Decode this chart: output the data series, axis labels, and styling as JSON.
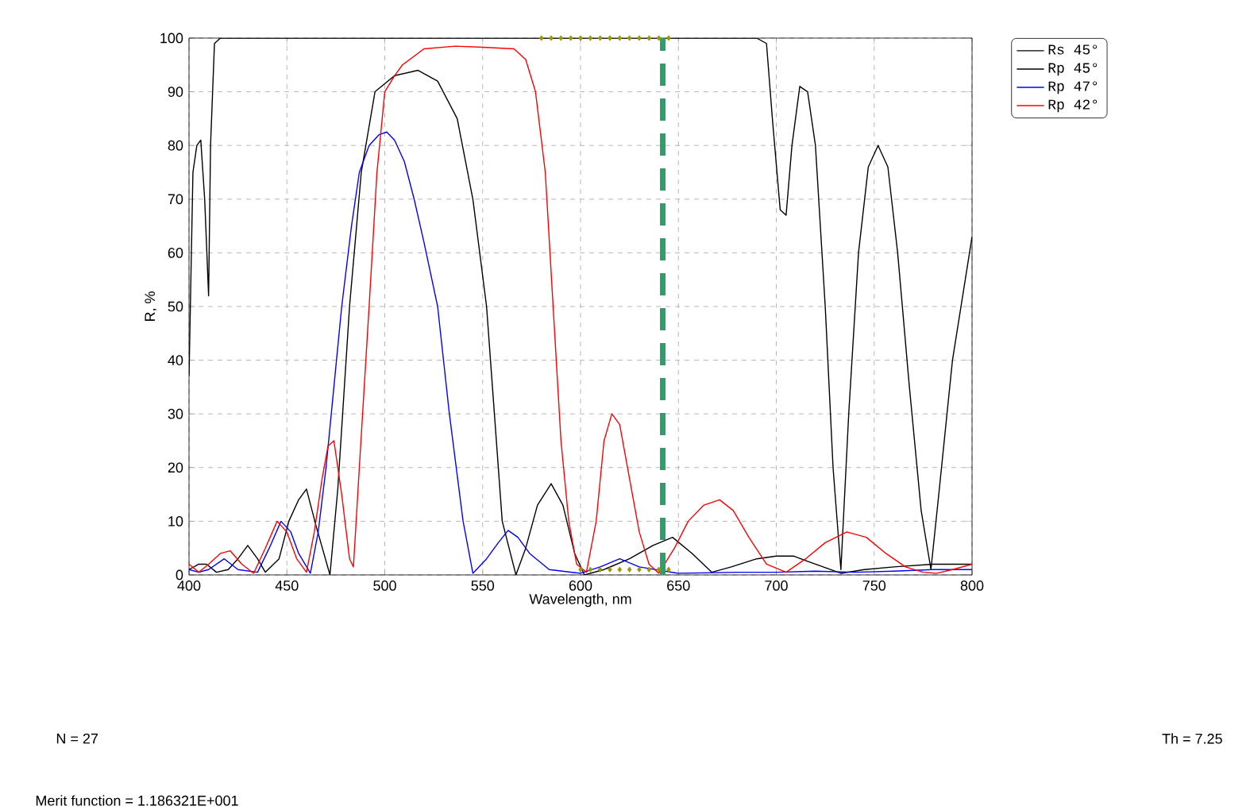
{
  "chart_data": {
    "type": "line",
    "xlabel": "Wavelength, nm",
    "ylabel": "R, %",
    "xlim": [
      400,
      800
    ],
    "ylim": [
      0,
      100
    ],
    "xticks": [
      400,
      450,
      500,
      550,
      600,
      650,
      700,
      750,
      800
    ],
    "yticks": [
      0,
      10,
      20,
      30,
      40,
      50,
      60,
      70,
      80,
      90,
      100
    ],
    "grid": true,
    "legend": "top right",
    "line_style": "solid",
    "marker": "none",
    "series": [
      {
        "name": "Rs 45°",
        "color": "#000000",
        "x": [
          400,
          402,
          404,
          406,
          408,
          410,
          411,
          413,
          416,
          690,
          695,
          698,
          702,
          705,
          708,
          712,
          716,
          720,
          725,
          729,
          733,
          737,
          742,
          747,
          752,
          757,
          762,
          768,
          774,
          779,
          783,
          790,
          800
        ],
        "values": [
          37,
          75,
          80,
          81,
          70,
          52,
          80,
          99,
          100,
          100,
          99,
          85,
          68,
          67,
          80,
          91,
          90,
          80,
          50,
          20,
          1,
          30,
          60,
          76,
          80,
          76,
          60,
          35,
          12,
          1,
          15,
          40,
          63
        ]
      },
      {
        "name": "Rp 45°",
        "color": "#000000",
        "x": [
          400,
          405,
          409,
          414,
          420,
          425,
          430,
          435,
          439,
          446,
          451,
          456,
          460,
          465,
          472,
          476,
          482,
          488,
          495,
          505,
          517,
          527,
          537,
          545,
          552,
          560,
          567,
          572,
          578,
          585,
          591,
          597,
          602,
          612,
          625,
          637,
          647,
          657,
          667,
          677,
          690,
          700,
          709,
          720,
          733,
          745,
          760,
          780,
          800
        ],
        "values": [
          1,
          2,
          2,
          0.5,
          1,
          3,
          5.5,
          3,
          0.5,
          3,
          10,
          14,
          16,
          9,
          0,
          16,
          50,
          75,
          90,
          93,
          94,
          92,
          85,
          70,
          50,
          10,
          0,
          5,
          13,
          17,
          13,
          4,
          0,
          1,
          3,
          5.5,
          7,
          4,
          0.5,
          1.5,
          3,
          3.5,
          3.5,
          2,
          0.3,
          1,
          1.5,
          2,
          2
        ]
      },
      {
        "name": "Rp 47°",
        "color": "#0000ff",
        "x": [
          400,
          405,
          410,
          418,
          425,
          435,
          441,
          447,
          452,
          456,
          462,
          466,
          470,
          474,
          478,
          483,
          487,
          492,
          497,
          501,
          505,
          510,
          515,
          520,
          527,
          533,
          540,
          545,
          552,
          558,
          563,
          568,
          574,
          584,
          600,
          610,
          620,
          630,
          650,
          680,
          700,
          720,
          740,
          760,
          780,
          800
        ],
        "values": [
          1,
          0.5,
          1,
          3,
          1,
          0.5,
          5,
          10,
          8,
          4,
          0.3,
          8,
          20,
          35,
          50,
          65,
          75,
          80,
          82,
          82.5,
          81,
          77,
          70,
          62,
          50,
          30,
          10,
          0.3,
          3,
          6,
          8.3,
          7,
          4,
          1,
          0.3,
          1.5,
          3,
          1.5,
          0.3,
          0.5,
          0.5,
          0.7,
          0.5,
          0.7,
          1,
          1
        ]
      },
      {
        "name": "Rp 42°",
        "color": "#ff0000",
        "x": [
          400,
          405,
          410,
          416,
          421,
          427,
          433,
          439,
          445,
          450,
          455,
          460,
          464,
          468,
          471,
          474,
          478,
          482,
          484,
          487,
          492,
          496,
          500,
          505,
          509,
          520,
          536,
          550,
          566,
          572,
          577,
          582,
          586,
          590,
          594,
          598,
          603,
          608,
          612,
          616,
          620,
          625,
          630,
          635,
          640,
          648,
          655,
          663,
          671,
          678,
          686,
          695,
          705,
          715,
          725,
          736,
          746,
          756,
          766,
          775,
          782,
          790,
          800
        ],
        "values": [
          2,
          0.5,
          2,
          4,
          4.5,
          2,
          0.3,
          5,
          10,
          8,
          3,
          0.5,
          8,
          18,
          24,
          25,
          15,
          3,
          1.5,
          20,
          50,
          75,
          90,
          93,
          95,
          98,
          98.5,
          98.3,
          98,
          96,
          90,
          75,
          50,
          25,
          10,
          2,
          0.5,
          10,
          25,
          30,
          28,
          18,
          8,
          2,
          0.3,
          5,
          10,
          13,
          14,
          12,
          7,
          2,
          0.5,
          3,
          6,
          8,
          7,
          4,
          1.5,
          0.5,
          0.3,
          1,
          2
        ]
      },
      {
        "type": "scatter",
        "color": "#999900",
        "marker": "diamond",
        "x": [
          580,
          585,
          590,
          595,
          600,
          605,
          610,
          615,
          620,
          625,
          630,
          635,
          640,
          645,
          600,
          605,
          610,
          615,
          620,
          625,
          630,
          635,
          640,
          645
        ],
        "values": [
          100,
          100,
          100,
          100,
          100,
          100,
          100,
          100,
          100,
          100,
          100,
          100,
          100,
          100,
          1,
          1,
          1,
          1,
          1,
          1,
          1,
          1,
          1,
          1
        ]
      }
    ],
    "ref_lines": [
      {
        "axis": "x",
        "value": 642,
        "color": "#2e9e6a",
        "line_style": "dashed"
      }
    ],
    "annotations": [
      "N = 27",
      "Th = 7.25",
      "Merit function =  1.186321E+001"
    ]
  }
}
